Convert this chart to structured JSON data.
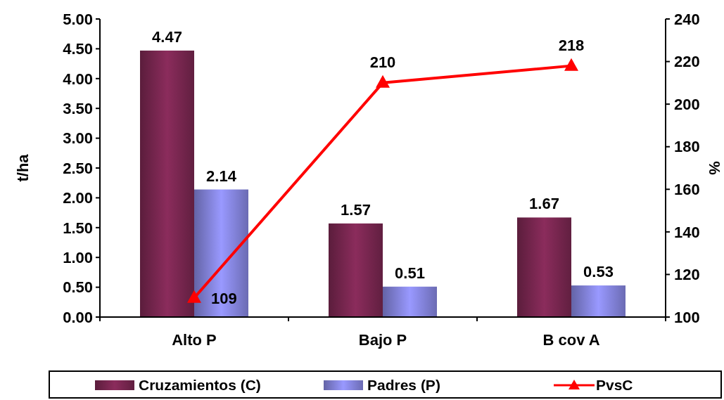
{
  "chart_data": {
    "type": "bar",
    "categories": [
      "Alto P",
      "Bajo P",
      "B cov A"
    ],
    "ylabel": "t/ha",
    "y2label": "%",
    "ylim": [
      0,
      5
    ],
    "yticks": [
      {
        "value": 0,
        "label": "0.00"
      },
      {
        "value": 0.5,
        "label": "0.50"
      },
      {
        "value": 1,
        "label": "1.00"
      },
      {
        "value": 1.5,
        "label": "1.50"
      },
      {
        "value": 2,
        "label": "2.00"
      },
      {
        "value": 2.5,
        "label": "2.50"
      },
      {
        "value": 3,
        "label": "3.00"
      },
      {
        "value": 3.5,
        "label": "3.50"
      },
      {
        "value": 4,
        "label": "4.00"
      },
      {
        "value": 4.5,
        "label": "4.50"
      },
      {
        "value": 5,
        "label": "5.00"
      }
    ],
    "y2lim": [
      100,
      240
    ],
    "y2ticks": [
      100,
      120,
      140,
      160,
      180,
      200,
      220,
      240
    ],
    "data_labels": true,
    "legend": "bottom",
    "grid": false,
    "series": [
      {
        "name": "Cruzamientos (C)",
        "color": "#8b2c5c",
        "values": [
          4.47,
          1.57,
          1.67
        ]
      },
      {
        "name": "Padres (P)",
        "color": "#9999ff",
        "values": [
          2.14,
          0.51,
          0.53
        ]
      },
      {
        "name": "PvsC",
        "type": "line",
        "axis": "y2",
        "color": "#ff0000",
        "marker": "triangle",
        "values": [
          109,
          210,
          218
        ]
      }
    ]
  }
}
